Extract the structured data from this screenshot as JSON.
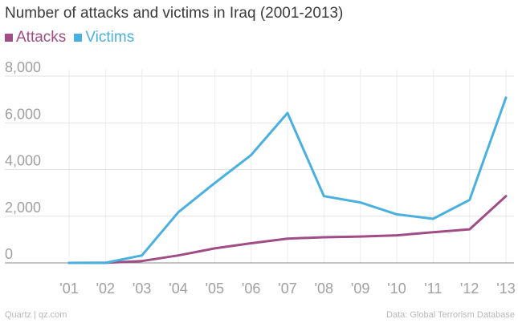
{
  "chart_data": {
    "type": "line",
    "title": "Number of attacks and victims in Iraq (2001-2013)",
    "categories": [
      "'01",
      "'02",
      "'03",
      "'04",
      "'05",
      "'06",
      "'07",
      "'08",
      "'09",
      "'10",
      "'11",
      "'12",
      "'13"
    ],
    "series": [
      {
        "name": "Attacks",
        "color": "#a04d86",
        "values": [
          0,
          5,
          80,
          320,
          620,
          840,
          1040,
          1100,
          1130,
          1180,
          1310,
          1440,
          2860
        ]
      },
      {
        "name": "Victims",
        "color": "#4ab0df",
        "values": [
          0,
          5,
          320,
          2170,
          3420,
          4620,
          6420,
          2860,
          2590,
          2080,
          1890,
          2700,
          7080
        ]
      }
    ],
    "ylim": [
      0,
      8000
    ],
    "yticks": [
      0,
      2000,
      4000,
      6000,
      8000
    ],
    "ytick_labels": [
      "0",
      "2,000",
      "4,000",
      "6,000",
      "8,000"
    ],
    "xlabel": "",
    "ylabel": "",
    "grid": true
  },
  "footer": {
    "source_left": "Quartz | qz.com",
    "source_right": "Data: Global Terrorism Database"
  }
}
